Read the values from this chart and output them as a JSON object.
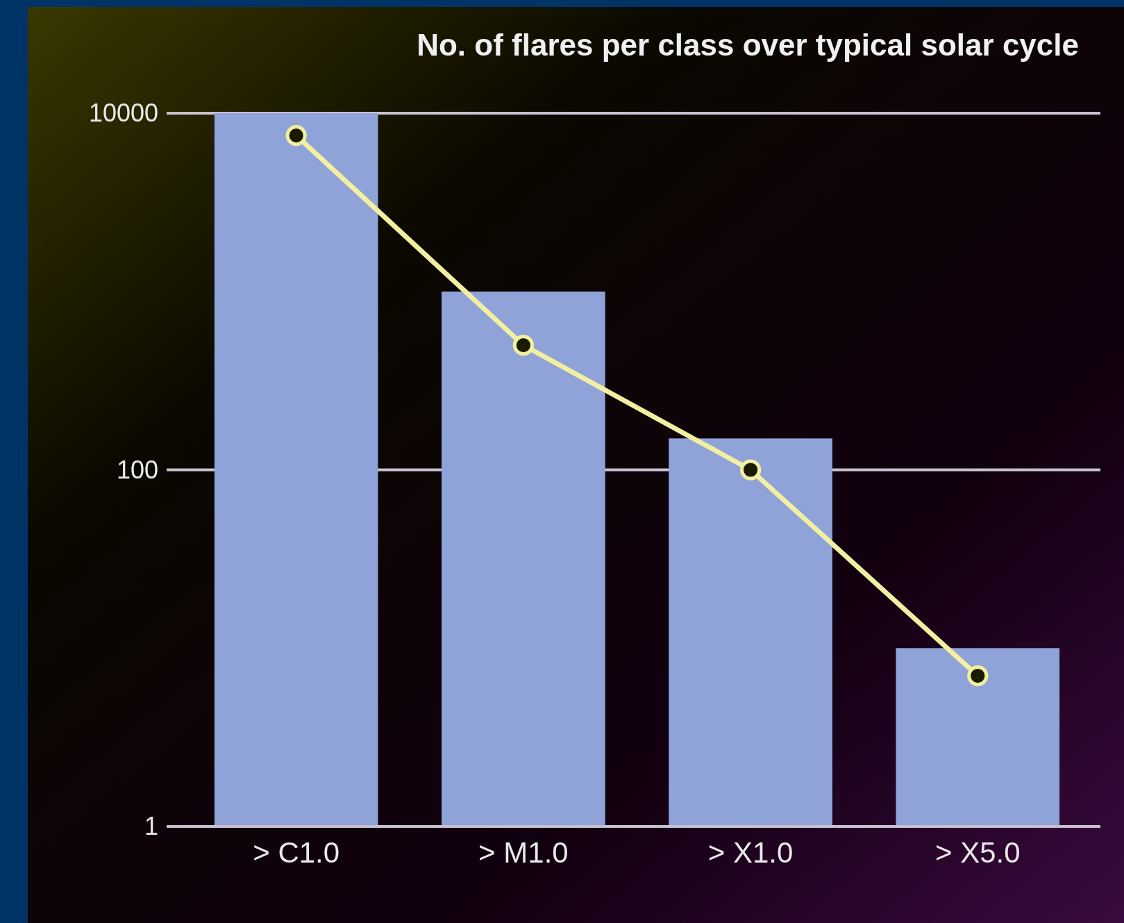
{
  "chart_data": {
    "type": "bar",
    "title": "No. of flares per class over typical solar cycle",
    "categories": [
      "> C1.0",
      "> M1.0",
      "> X1.0",
      "> X5.0"
    ],
    "series": [
      {
        "color": "#8fa3d8",
        "values": [
          10000,
          1000,
          150,
          10
        ]
      },
      {
        "type": "line",
        "color": "#f2f0a0",
        "values": [
          7500,
          500,
          100,
          7
        ]
      }
    ],
    "log": true,
    "ylim": [
      1,
      10000
    ],
    "yticks": [
      1,
      100,
      10000
    ],
    "grid": "y",
    "marker": "circle",
    "line_style": "solid"
  }
}
